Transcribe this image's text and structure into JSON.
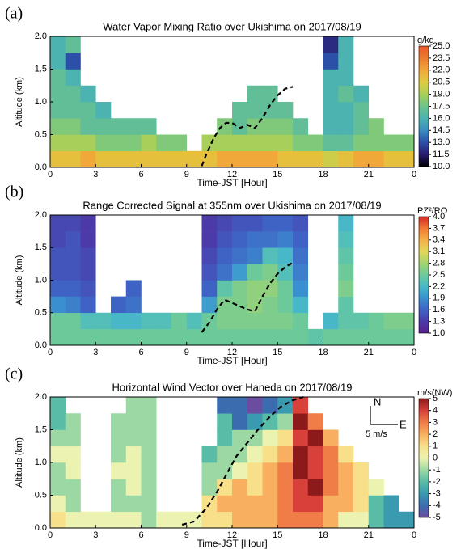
{
  "chart_data": [
    {
      "type": "heatmap",
      "panel_label": "(a)",
      "title": "Water Vapor Mixing Ratio over Ukishima on 2017/08/19",
      "xlabel": "Time-JST [Hour]",
      "ylabel": "Altitude (km)",
      "colorbar_label": "g/kg",
      "xlim": [
        0,
        24
      ],
      "ylim": [
        0,
        2
      ],
      "xticks": [
        0,
        3,
        6,
        9,
        12,
        15,
        18,
        21,
        {
          "value": 24,
          "label": "0"
        }
      ],
      "yticks": [
        {
          "value": 0,
          "label": "0.0"
        },
        {
          "value": 0.5,
          "label": "0.5"
        },
        {
          "value": 1,
          "label": "1.0"
        },
        {
          "value": 1.5,
          "label": "1.5"
        },
        {
          "value": 2,
          "label": "2.0"
        }
      ],
      "cticks": [
        {
          "value": 10,
          "label": "10.0"
        },
        {
          "value": 11.5,
          "label": "11.5"
        },
        {
          "value": 13,
          "label": "13.0"
        },
        {
          "value": 14.5,
          "label": "14.5"
        },
        {
          "value": 16,
          "label": "16.0"
        },
        {
          "value": 17.5,
          "label": "17.5"
        },
        {
          "value": 19,
          "label": "19.0"
        },
        {
          "value": 20.5,
          "label": "20.5"
        },
        {
          "value": 22,
          "label": "22.0"
        },
        {
          "value": 23.5,
          "label": "23.5"
        },
        {
          "value": 25,
          "label": "25.0"
        }
      ],
      "ccolors": [
        "#000000",
        "#2a1a6e",
        "#2c4fa8",
        "#3a8cc0",
        "#4cb3b0",
        "#6cc48a",
        "#a8cf5a",
        "#e0cc40",
        "#f0a838",
        "#ec7a30",
        "#e85a28"
      ],
      "x_bins": [
        0,
        1,
        2,
        3,
        4,
        5,
        6,
        7,
        8,
        9,
        10,
        11,
        12,
        13,
        14,
        15,
        16,
        17,
        18,
        19,
        20,
        21,
        22,
        23,
        24
      ],
      "y_bins": [
        0,
        0.25,
        0.5,
        0.75,
        1,
        1.25,
        1.5,
        1.75,
        2
      ],
      "z": [
        [
          21,
          21,
          22,
          21,
          21,
          21,
          21,
          21,
          21,
          21,
          21,
          22,
          22,
          22,
          22,
          21,
          21,
          21,
          20,
          21,
          22,
          22,
          21,
          21
        ],
        [
          19,
          19,
          19,
          18,
          18,
          18,
          19,
          18,
          18,
          null,
          19,
          19,
          19,
          19,
          19,
          19,
          18,
          18,
          17,
          17,
          18,
          18,
          18,
          18
        ],
        [
          18,
          18,
          17,
          17,
          17,
          17,
          17,
          null,
          null,
          null,
          null,
          18,
          17,
          18,
          18,
          18,
          17,
          null,
          16,
          16,
          17,
          18,
          null,
          null
        ],
        [
          17,
          17,
          17,
          16,
          null,
          null,
          null,
          null,
          null,
          null,
          null,
          null,
          17,
          17,
          17,
          17,
          null,
          null,
          16,
          16,
          17,
          null,
          null,
          null
        ],
        [
          17,
          17,
          16,
          null,
          null,
          null,
          null,
          null,
          null,
          null,
          null,
          null,
          null,
          17,
          17,
          null,
          null,
          null,
          16,
          17,
          16,
          null,
          null,
          null
        ],
        [
          17,
          16,
          null,
          null,
          null,
          null,
          null,
          null,
          null,
          null,
          null,
          null,
          null,
          null,
          null,
          null,
          null,
          null,
          16,
          16,
          null,
          null,
          null,
          null
        ],
        [
          16,
          13,
          null,
          null,
          null,
          null,
          null,
          null,
          null,
          null,
          null,
          null,
          null,
          null,
          null,
          null,
          null,
          null,
          13,
          16,
          null,
          null,
          null,
          null
        ],
        [
          16,
          17,
          null,
          null,
          null,
          null,
          null,
          null,
          null,
          null,
          null,
          null,
          null,
          null,
          null,
          null,
          null,
          null,
          12,
          16,
          null,
          null,
          null,
          null
        ]
      ],
      "boundary": {
        "x": [
          10,
          10.3,
          10.8,
          11.2,
          11.6,
          12,
          12.5,
          13,
          13.5,
          14,
          14.5,
          15,
          15.5,
          16
        ],
        "y": [
          0.02,
          0.2,
          0.45,
          0.6,
          0.68,
          0.68,
          0.6,
          0.65,
          0.6,
          0.75,
          0.95,
          1.1,
          1.2,
          1.23
        ]
      }
    },
    {
      "type": "heatmap",
      "panel_label": "(b)",
      "title": "Range Corrected Signal at 355nm over Ukishima on 2017/08/19",
      "xlabel": "Time-JST [Hour]",
      "ylabel": "Altitude (km)",
      "colorbar_label": "PZ²/RO",
      "xlim": [
        0,
        24
      ],
      "ylim": [
        0,
        2
      ],
      "xticks": [
        0,
        3,
        6,
        9,
        12,
        15,
        18,
        21,
        {
          "value": 24,
          "label": "0"
        }
      ],
      "yticks": [
        {
          "value": 0,
          "label": "0.0"
        },
        {
          "value": 0.5,
          "label": "0.5"
        },
        {
          "value": 1,
          "label": "1.0"
        },
        {
          "value": 1.5,
          "label": "1.5"
        },
        {
          "value": 2,
          "label": "2.0"
        }
      ],
      "cticks": [
        {
          "value": 1,
          "label": "1.0"
        },
        1.3,
        1.6,
        1.9,
        2.2,
        2.5,
        2.8,
        3.1,
        3.4,
        3.7,
        {
          "value": 4,
          "label": "4.0"
        }
      ],
      "ccolors": [
        "#5a1e8c",
        "#4b3aa8",
        "#3f63c4",
        "#3a8fd0",
        "#48b8c8",
        "#6cca9a",
        "#a4d470",
        "#e2d858",
        "#f5b048",
        "#f07a34",
        "#d8282a"
      ],
      "x_bins": [
        0,
        1,
        2,
        3,
        4,
        5,
        6,
        7,
        8,
        9,
        10,
        11,
        12,
        13,
        14,
        15,
        16,
        17,
        18,
        19,
        20,
        21,
        22,
        23,
        24
      ],
      "y_bins": [
        0,
        0.25,
        0.5,
        0.75,
        1,
        1.25,
        1.5,
        1.75,
        2
      ],
      "z": [
        [
          2.5,
          2.5,
          2.5,
          2.5,
          2.5,
          2.5,
          2.5,
          2.5,
          2.5,
          2.5,
          2.5,
          2.5,
          2.5,
          2.5,
          2.5,
          2.5,
          2.5,
          2.4,
          2.5,
          2.5,
          2.5,
          2.5,
          2.5,
          2.5
        ],
        [
          2.5,
          2.5,
          2.3,
          2.3,
          2.2,
          2.2,
          2.3,
          2.3,
          2.5,
          2.3,
          2.5,
          2.6,
          2.6,
          2.6,
          2.6,
          2.6,
          2.5,
          null,
          2.2,
          2.4,
          2.4,
          2.5,
          2.6,
          2.6
        ],
        [
          1.9,
          1.8,
          1.6,
          null,
          1.6,
          1.7,
          null,
          null,
          null,
          null,
          2.0,
          2.6,
          2.6,
          2.7,
          2.6,
          2.5,
          2.2,
          null,
          null,
          2.4,
          null,
          null,
          null,
          null
        ],
        [
          1.6,
          1.6,
          1.5,
          null,
          null,
          1.6,
          null,
          null,
          null,
          null,
          1.6,
          2.4,
          2.6,
          2.7,
          2.7,
          2.5,
          1.9,
          null,
          null,
          2.6,
          null,
          null,
          null,
          null
        ],
        [
          1.5,
          1.5,
          1.4,
          null,
          null,
          null,
          null,
          null,
          null,
          null,
          1.5,
          1.7,
          2.0,
          2.5,
          2.6,
          2.3,
          1.8,
          null,
          null,
          2.5,
          null,
          null,
          null,
          null
        ],
        [
          1.5,
          1.5,
          1.4,
          null,
          null,
          null,
          null,
          null,
          null,
          null,
          1.4,
          1.6,
          1.7,
          1.8,
          2.3,
          2.2,
          1.7,
          null,
          null,
          2.4,
          null,
          null,
          null,
          null
        ],
        [
          1.4,
          1.5,
          1.3,
          null,
          null,
          null,
          null,
          null,
          null,
          null,
          1.3,
          1.5,
          1.6,
          1.7,
          1.7,
          1.8,
          1.6,
          null,
          null,
          2.3,
          null,
          null,
          null,
          null
        ],
        [
          1.4,
          1.4,
          1.3,
          null,
          null,
          null,
          null,
          null,
          null,
          null,
          1.3,
          1.4,
          1.5,
          1.5,
          1.6,
          1.6,
          1.5,
          null,
          null,
          2.2,
          null,
          null,
          null,
          null
        ]
      ],
      "boundary": {
        "x": [
          10,
          10.5,
          11,
          11.5,
          12,
          12.5,
          13,
          13.5,
          14,
          14.5,
          15,
          15.5,
          16
        ],
        "y": [
          0.2,
          0.35,
          0.55,
          0.7,
          0.65,
          0.6,
          0.55,
          0.52,
          0.75,
          0.95,
          1.1,
          1.2,
          1.27
        ]
      }
    },
    {
      "type": "heatmap",
      "panel_label": "(c)",
      "title": "Horizontal Wind Vector over Haneda on 2017/08/19",
      "xlabel": "Time-JST [Hour]",
      "ylabel": "Altitude (km)",
      "colorbar_label": "m/s(NW)",
      "compass": {
        "north": "N",
        "east": "E",
        "scale": "5 m/s"
      },
      "xlim": [
        0,
        24
      ],
      "ylim": [
        0,
        2
      ],
      "xticks": [
        0,
        3,
        6,
        9,
        12,
        15,
        18,
        21,
        {
          "value": 24,
          "label": "0"
        }
      ],
      "yticks": [
        {
          "value": 0,
          "label": "0.0"
        },
        {
          "value": 0.5,
          "label": "0.5"
        },
        {
          "value": 1,
          "label": "1.0"
        },
        {
          "value": 1.5,
          "label": "1.5"
        },
        {
          "value": 2,
          "label": "2.0"
        }
      ],
      "cticks": [
        -5,
        -4,
        -3,
        -2,
        -1,
        0,
        1,
        2,
        3,
        4,
        5
      ],
      "ccolors": [
        "#6a4ca0",
        "#3c6cb0",
        "#3a9ab0",
        "#58bca6",
        "#9cd8a4",
        "#ecf2b0",
        "#f8e08a",
        "#f8b060",
        "#f07c48",
        "#d8403a",
        "#8c1a1a"
      ],
      "x_bins": [
        0,
        1,
        2,
        3,
        4,
        5,
        6,
        7,
        8,
        9,
        10,
        11,
        12,
        13,
        14,
        15,
        16,
        17,
        18,
        19,
        20,
        21,
        22,
        23,
        24
      ],
      "y_bins": [
        0,
        0.25,
        0.5,
        0.75,
        1,
        1.25,
        1.5,
        1.75,
        2
      ],
      "z": [
        [
          1,
          0,
          0,
          0,
          0,
          0,
          -1,
          0,
          0,
          0,
          1,
          1,
          2,
          2,
          2,
          3,
          3,
          3,
          2,
          0,
          0,
          -2,
          -3,
          -3
        ],
        [
          0,
          -1,
          null,
          null,
          -1,
          -1,
          -1,
          null,
          null,
          null,
          1,
          2,
          2,
          2,
          2,
          3,
          4,
          4,
          2,
          2,
          1,
          -2,
          -3,
          null
        ],
        [
          -1,
          -1,
          null,
          null,
          -1,
          0,
          -1,
          null,
          null,
          null,
          -1,
          1,
          2,
          1,
          2,
          3,
          4,
          5,
          3,
          2,
          1,
          0,
          null,
          null
        ],
        [
          -1,
          0,
          null,
          null,
          0,
          0,
          -1,
          null,
          null,
          null,
          -1,
          -1,
          0,
          1,
          2,
          3,
          5,
          4,
          3,
          2,
          1,
          null,
          null,
          null
        ],
        [
          0,
          0,
          null,
          null,
          -1,
          0,
          -1,
          null,
          null,
          null,
          -2,
          -1,
          -1,
          0,
          1,
          2,
          5,
          4,
          3,
          1,
          null,
          null,
          null,
          null
        ],
        [
          -1,
          -1,
          null,
          null,
          -1,
          -1,
          -1,
          null,
          null,
          null,
          null,
          -2,
          -1,
          -1,
          0,
          1,
          4,
          5,
          2,
          null,
          null,
          null,
          null,
          null
        ],
        [
          -2,
          -1,
          null,
          null,
          -1,
          -1,
          -1,
          null,
          null,
          null,
          null,
          -2,
          -4,
          -3,
          -2,
          -1,
          5,
          3,
          null,
          null,
          null,
          null,
          null,
          null
        ],
        [
          -2,
          null,
          null,
          null,
          null,
          -1,
          -1,
          null,
          null,
          null,
          null,
          -4,
          -4,
          -5,
          -4,
          -3,
          4,
          null,
          null,
          null,
          null,
          null,
          null,
          null
        ]
      ],
      "boundary": {
        "x": [
          8.7,
          9.5,
          10.3,
          11,
          11.7,
          12.3,
          13,
          13.7,
          14.5,
          15.2,
          16,
          16.7
        ],
        "y": [
          0.05,
          0.1,
          0.3,
          0.55,
          0.85,
          1.1,
          1.3,
          1.5,
          1.7,
          1.85,
          1.95,
          2.0
        ]
      }
    }
  ]
}
